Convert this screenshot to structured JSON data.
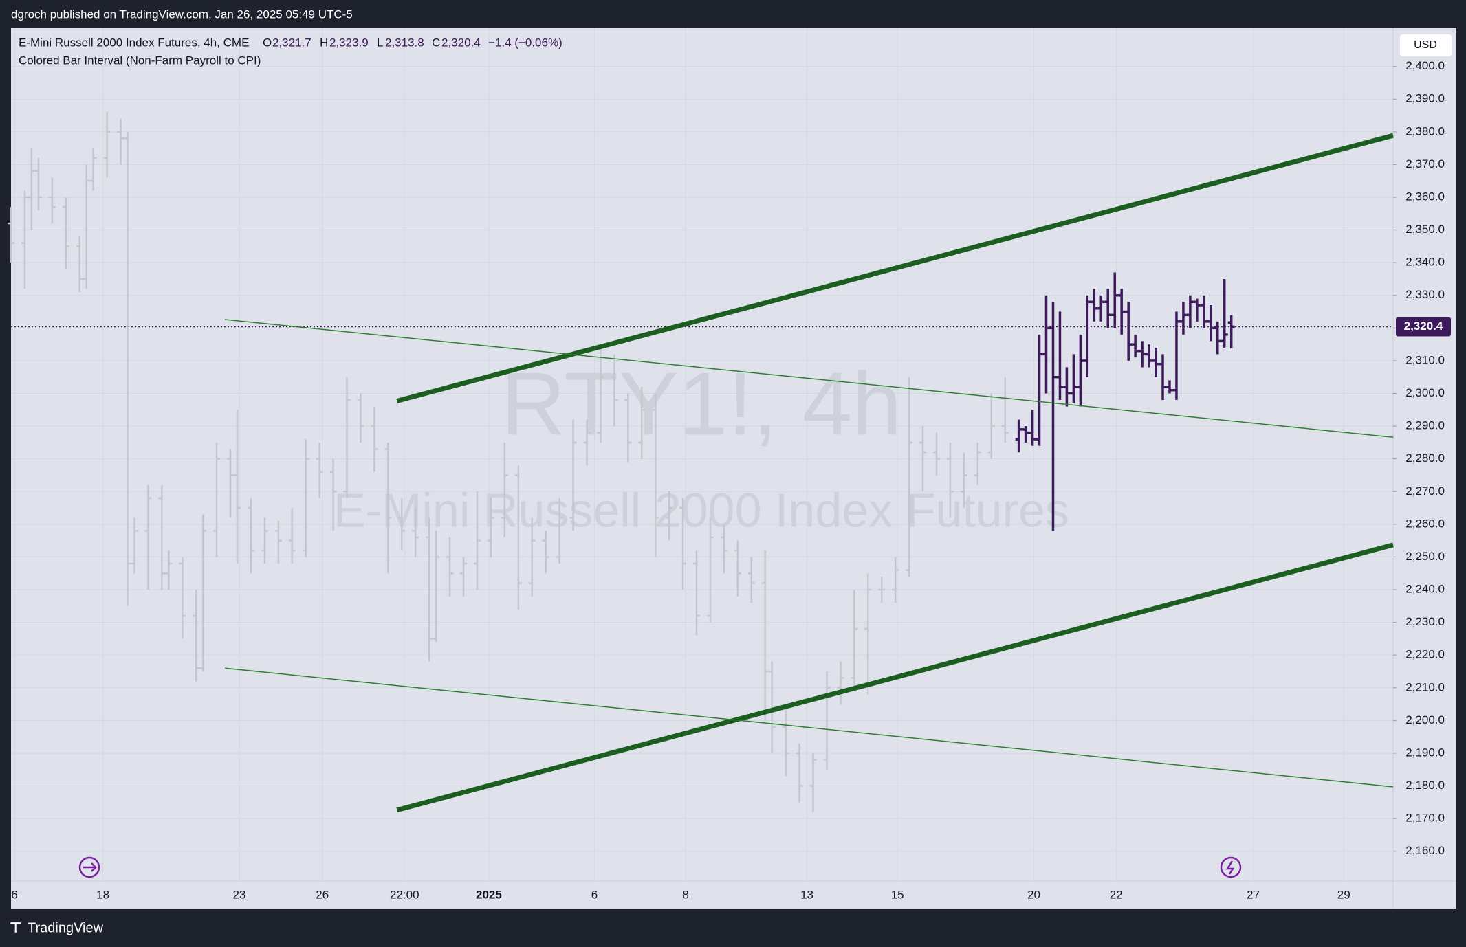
{
  "chart_data": {
    "type": "ohlc",
    "published": "dgroch published on TradingView.com, Jan 26, 2025 05:49 UTC-5",
    "title": "E-Mini Russell 2000 Index Futures, 4h, CME",
    "ohlc": [
      {
        "label": "O",
        "value": 2321.7,
        "value_label": "2,321.7"
      },
      {
        "label": "H",
        "value": 2323.9,
        "value_label": "2,323.9"
      },
      {
        "label": "L",
        "value": 2313.8,
        "value_label": "2,313.8"
      },
      {
        "label": "C",
        "value": 2320.4,
        "value_label": "2,320.4"
      }
    ],
    "change": {
      "value": -1.4,
      "percent": -0.06,
      "label": "−1.4 (−0.06%)"
    },
    "indicator": "Colored Bar Interval (Non-Farm Payroll to CPI)",
    "watermark": [
      "RTY1!, 4h",
      "E-Mini Russell 2000 Index Futures"
    ],
    "currency": "USD",
    "brand": "TradingView",
    "last_price": {
      "value": 2320.4,
      "label": "2,320.4",
      "color": "#3d1a5c"
    },
    "grid": true,
    "xlim": [
      0,
      201.6
    ],
    "xticks": [
      {
        "value": 0.5,
        "label": "6"
      },
      {
        "value": 13.4,
        "label": "18"
      },
      {
        "value": 33.3,
        "label": "23"
      },
      {
        "value": 45.4,
        "label": "26"
      },
      {
        "value": 57.4,
        "label": "22:00"
      },
      {
        "value": 69.7,
        "label": "2025"
      },
      {
        "value": 85.1,
        "label": "6"
      },
      {
        "value": 98.4,
        "label": "8"
      },
      {
        "value": 116.1,
        "label": "13"
      },
      {
        "value": 129.3,
        "label": "15"
      },
      {
        "value": 149.2,
        "label": "20"
      },
      {
        "value": 161.2,
        "label": "22"
      },
      {
        "value": 181.2,
        "label": "27"
      },
      {
        "value": 194.4,
        "label": "29"
      }
    ],
    "ylim": [
      2150.9,
      2411.7
    ],
    "yticks": [
      {
        "value": 2160,
        "label": "2,160.0"
      },
      {
        "value": 2170,
        "label": "2,170.0"
      },
      {
        "value": 2180,
        "label": "2,180.0"
      },
      {
        "value": 2190,
        "label": "2,190.0"
      },
      {
        "value": 2200,
        "label": "2,200.0"
      },
      {
        "value": 2210,
        "label": "2,210.0"
      },
      {
        "value": 2220,
        "label": "2,220.0"
      },
      {
        "value": 2230,
        "label": "2,230.0"
      },
      {
        "value": 2240,
        "label": "2,240.0"
      },
      {
        "value": 2250,
        "label": "2,250.0"
      },
      {
        "value": 2260,
        "label": "2,260.0"
      },
      {
        "value": 2270,
        "label": "2,270.0"
      },
      {
        "value": 2280,
        "label": "2,280.0"
      },
      {
        "value": 2290,
        "label": "2,290.0"
      },
      {
        "value": 2300,
        "label": "2,300.0"
      },
      {
        "value": 2310,
        "label": "2,310.0"
      },
      {
        "value": 2320,
        "label": "2,320.0"
      },
      {
        "value": 2330,
        "label": "2,330.0"
      },
      {
        "value": 2340,
        "label": "2,340.0"
      },
      {
        "value": 2350,
        "label": "2,350.0"
      },
      {
        "value": 2360,
        "label": "2,360.0"
      },
      {
        "value": 2370,
        "label": "2,370.0"
      },
      {
        "value": 2380,
        "label": "2,380.0"
      },
      {
        "value": 2390,
        "label": "2,390.0"
      },
      {
        "value": 2400,
        "label": "2,400.0"
      }
    ],
    "series": [
      {
        "color": "#c3c6ce",
        "bars": [
          [
            0,
            2352,
            2357,
            2340,
            2346
          ],
          [
            2,
            2346,
            2362,
            2332,
            2360
          ],
          [
            3,
            2360,
            2375,
            2350,
            2368
          ],
          [
            4,
            2368,
            2372,
            2356,
            2360
          ],
          [
            6,
            2360,
            2366,
            2352,
            2357
          ],
          [
            8,
            2357,
            2360,
            2338,
            2345
          ],
          [
            10,
            2345,
            2348,
            2331,
            2335
          ],
          [
            11,
            2335,
            2370,
            2332,
            2365
          ],
          [
            12,
            2365,
            2375,
            2362,
            2372
          ],
          [
            14,
            2372,
            2386,
            2366,
            2380
          ],
          [
            16,
            2380,
            2384,
            2370,
            2378
          ],
          [
            17,
            2378,
            2380,
            2235,
            2248
          ],
          [
            18,
            2248,
            2262,
            2245,
            2258
          ],
          [
            20,
            2258,
            2272,
            2240,
            2268
          ],
          [
            22,
            2268,
            2272,
            2240,
            2245
          ],
          [
            23,
            2245,
            2252,
            2240,
            2248
          ],
          [
            25,
            2248,
            2250,
            2225,
            2232
          ],
          [
            27,
            2232,
            2240,
            2212,
            2216
          ],
          [
            28,
            2216,
            2263,
            2215,
            2258
          ],
          [
            30,
            2258,
            2285,
            2250,
            2280
          ],
          [
            32,
            2280,
            2283,
            2262,
            2275
          ],
          [
            33,
            2275,
            2295,
            2248,
            2265
          ],
          [
            35,
            2265,
            2268,
            2245,
            2252
          ],
          [
            37,
            2252,
            2262,
            2248,
            2258
          ],
          [
            39,
            2258,
            2261,
            2248,
            2255
          ],
          [
            41,
            2255,
            2265,
            2248,
            2252
          ],
          [
            43,
            2252,
            2286,
            2250,
            2280
          ],
          [
            45,
            2280,
            2285,
            2268,
            2276
          ],
          [
            47,
            2276,
            2280,
            2258,
            2270
          ],
          [
            49,
            2270,
            2305,
            2268,
            2298
          ],
          [
            51,
            2298,
            2300,
            2285,
            2290
          ],
          [
            53,
            2290,
            2296,
            2276,
            2283
          ],
          [
            55,
            2283,
            2285,
            2245,
            2262
          ],
          [
            57,
            2262,
            2268,
            2252,
            2258
          ],
          [
            59,
            2258,
            2265,
            2250,
            2256
          ],
          [
            61,
            2256,
            2262,
            2218,
            2225
          ],
          [
            62,
            2225,
            2258,
            2224,
            2250
          ],
          [
            64,
            2250,
            2256,
            2238,
            2245
          ],
          [
            66,
            2245,
            2250,
            2238,
            2248
          ],
          [
            68,
            2248,
            2270,
            2240,
            2255
          ],
          [
            70,
            2255,
            2268,
            2250,
            2262
          ],
          [
            72,
            2262,
            2285,
            2256,
            2275
          ],
          [
            74,
            2275,
            2278,
            2234,
            2242
          ],
          [
            76,
            2242,
            2262,
            2238,
            2255
          ],
          [
            78,
            2255,
            2258,
            2245,
            2250
          ],
          [
            80,
            2250,
            2268,
            2248,
            2262
          ],
          [
            82,
            2262,
            2292,
            2258,
            2285
          ],
          [
            84,
            2285,
            2292,
            2278,
            2288
          ],
          [
            86,
            2288,
            2315,
            2285,
            2305
          ],
          [
            88,
            2305,
            2312,
            2290,
            2298
          ],
          [
            90,
            2298,
            2300,
            2279,
            2285
          ],
          [
            92,
            2285,
            2302,
            2280,
            2295
          ],
          [
            94,
            2295,
            2300,
            2250,
            2262
          ],
          [
            96,
            2262,
            2270,
            2255,
            2265
          ],
          [
            98,
            2265,
            2268,
            2240,
            2248
          ],
          [
            100,
            2248,
            2252,
            2226,
            2232
          ],
          [
            102,
            2232,
            2262,
            2230,
            2256
          ],
          [
            104,
            2256,
            2260,
            2245,
            2252
          ],
          [
            106,
            2252,
            2255,
            2238,
            2245
          ],
          [
            108,
            2245,
            2250,
            2236,
            2242
          ],
          [
            110,
            2242,
            2252,
            2200,
            2215
          ],
          [
            111,
            2215,
            2218,
            2190,
            2198
          ],
          [
            113,
            2198,
            2205,
            2183,
            2190
          ],
          [
            115,
            2190,
            2193,
            2175,
            2180
          ],
          [
            117,
            2180,
            2190,
            2172,
            2188
          ],
          [
            119,
            2188,
            2215,
            2185,
            2210
          ],
          [
            121,
            2210,
            2218,
            2205,
            2213
          ],
          [
            123,
            2213,
            2240,
            2210,
            2228
          ],
          [
            125,
            2228,
            2245,
            2208,
            2240
          ],
          [
            127,
            2240,
            2244,
            2236,
            2240
          ],
          [
            129,
            2240,
            2250,
            2236,
            2246
          ],
          [
            131,
            2246,
            2305,
            2244,
            2285
          ],
          [
            133,
            2285,
            2290,
            2270,
            2282
          ],
          [
            135,
            2282,
            2288,
            2275,
            2280
          ],
          [
            137,
            2280,
            2285,
            2262,
            2270
          ],
          [
            139,
            2270,
            2282,
            2265,
            2275
          ],
          [
            141,
            2275,
            2285,
            2272,
            2282
          ],
          [
            143,
            2282,
            2300,
            2280,
            2290
          ],
          [
            145,
            2290,
            2305,
            2285,
            2288
          ]
        ]
      },
      {
        "color": "#3d1a5c",
        "bars": [
          [
            147,
            2286,
            2292,
            2282,
            2289
          ],
          [
            148,
            2289,
            2290,
            2285,
            2288
          ],
          [
            149,
            2288,
            2295,
            2284,
            2286
          ],
          [
            150,
            2286,
            2318,
            2284,
            2312
          ],
          [
            151,
            2312,
            2330,
            2300,
            2320
          ],
          [
            152,
            2320,
            2328,
            2258,
            2305
          ],
          [
            153,
            2305,
            2325,
            2298,
            2302
          ],
          [
            154,
            2302,
            2308,
            2296,
            2300
          ],
          [
            155,
            2300,
            2312,
            2297,
            2302
          ],
          [
            156,
            2302,
            2318,
            2296,
            2310
          ],
          [
            157,
            2310,
            2330,
            2305,
            2328
          ],
          [
            158,
            2328,
            2332,
            2322,
            2326
          ],
          [
            159,
            2326,
            2330,
            2322,
            2328
          ],
          [
            160,
            2328,
            2332,
            2320,
            2324
          ],
          [
            161,
            2324,
            2337,
            2320,
            2330
          ],
          [
            162,
            2330,
            2332,
            2318,
            2325
          ],
          [
            163,
            2325,
            2328,
            2310,
            2315
          ],
          [
            164,
            2315,
            2318,
            2311,
            2313
          ],
          [
            165,
            2313,
            2316,
            2308,
            2312
          ],
          [
            166,
            2312,
            2315,
            2308,
            2310
          ],
          [
            167,
            2310,
            2314,
            2305,
            2309
          ],
          [
            168,
            2309,
            2312,
            2298,
            2302
          ],
          [
            169,
            2302,
            2304,
            2300,
            2301
          ],
          [
            170,
            2301,
            2325,
            2298,
            2322
          ],
          [
            171,
            2322,
            2328,
            2318,
            2324
          ],
          [
            172,
            2324,
            2330,
            2320,
            2328
          ],
          [
            173,
            2328,
            2329,
            2322,
            2327
          ],
          [
            174,
            2327,
            2330,
            2320,
            2322
          ],
          [
            175,
            2322,
            2327,
            2316,
            2320
          ],
          [
            176,
            2320,
            2322,
            2312,
            2316
          ],
          [
            177,
            2316,
            2335,
            2314,
            2318
          ],
          [
            178,
            2321.7,
            2323.9,
            2313.8,
            2320.4
          ]
        ]
      }
    ],
    "lines": [
      {
        "x": [
          56.3,
          201.6
        ],
        "y": [
          2297.7,
          2378.9
        ],
        "color": "#1b5e20",
        "weight": "thick"
      },
      {
        "x": [
          56.3,
          201.6
        ],
        "y": [
          2172.6,
          2253.7
        ],
        "color": "#1b5e20",
        "weight": "thick"
      },
      {
        "x": [
          31.2,
          201.6
        ],
        "y": [
          2322.6,
          2286.6
        ],
        "color": "#2e7d32",
        "weight": "thin"
      },
      {
        "x": [
          31.2,
          201.6
        ],
        "y": [
          2216,
          2179.7
        ],
        "color": "#2e7d32",
        "weight": "thin"
      }
    ]
  }
}
